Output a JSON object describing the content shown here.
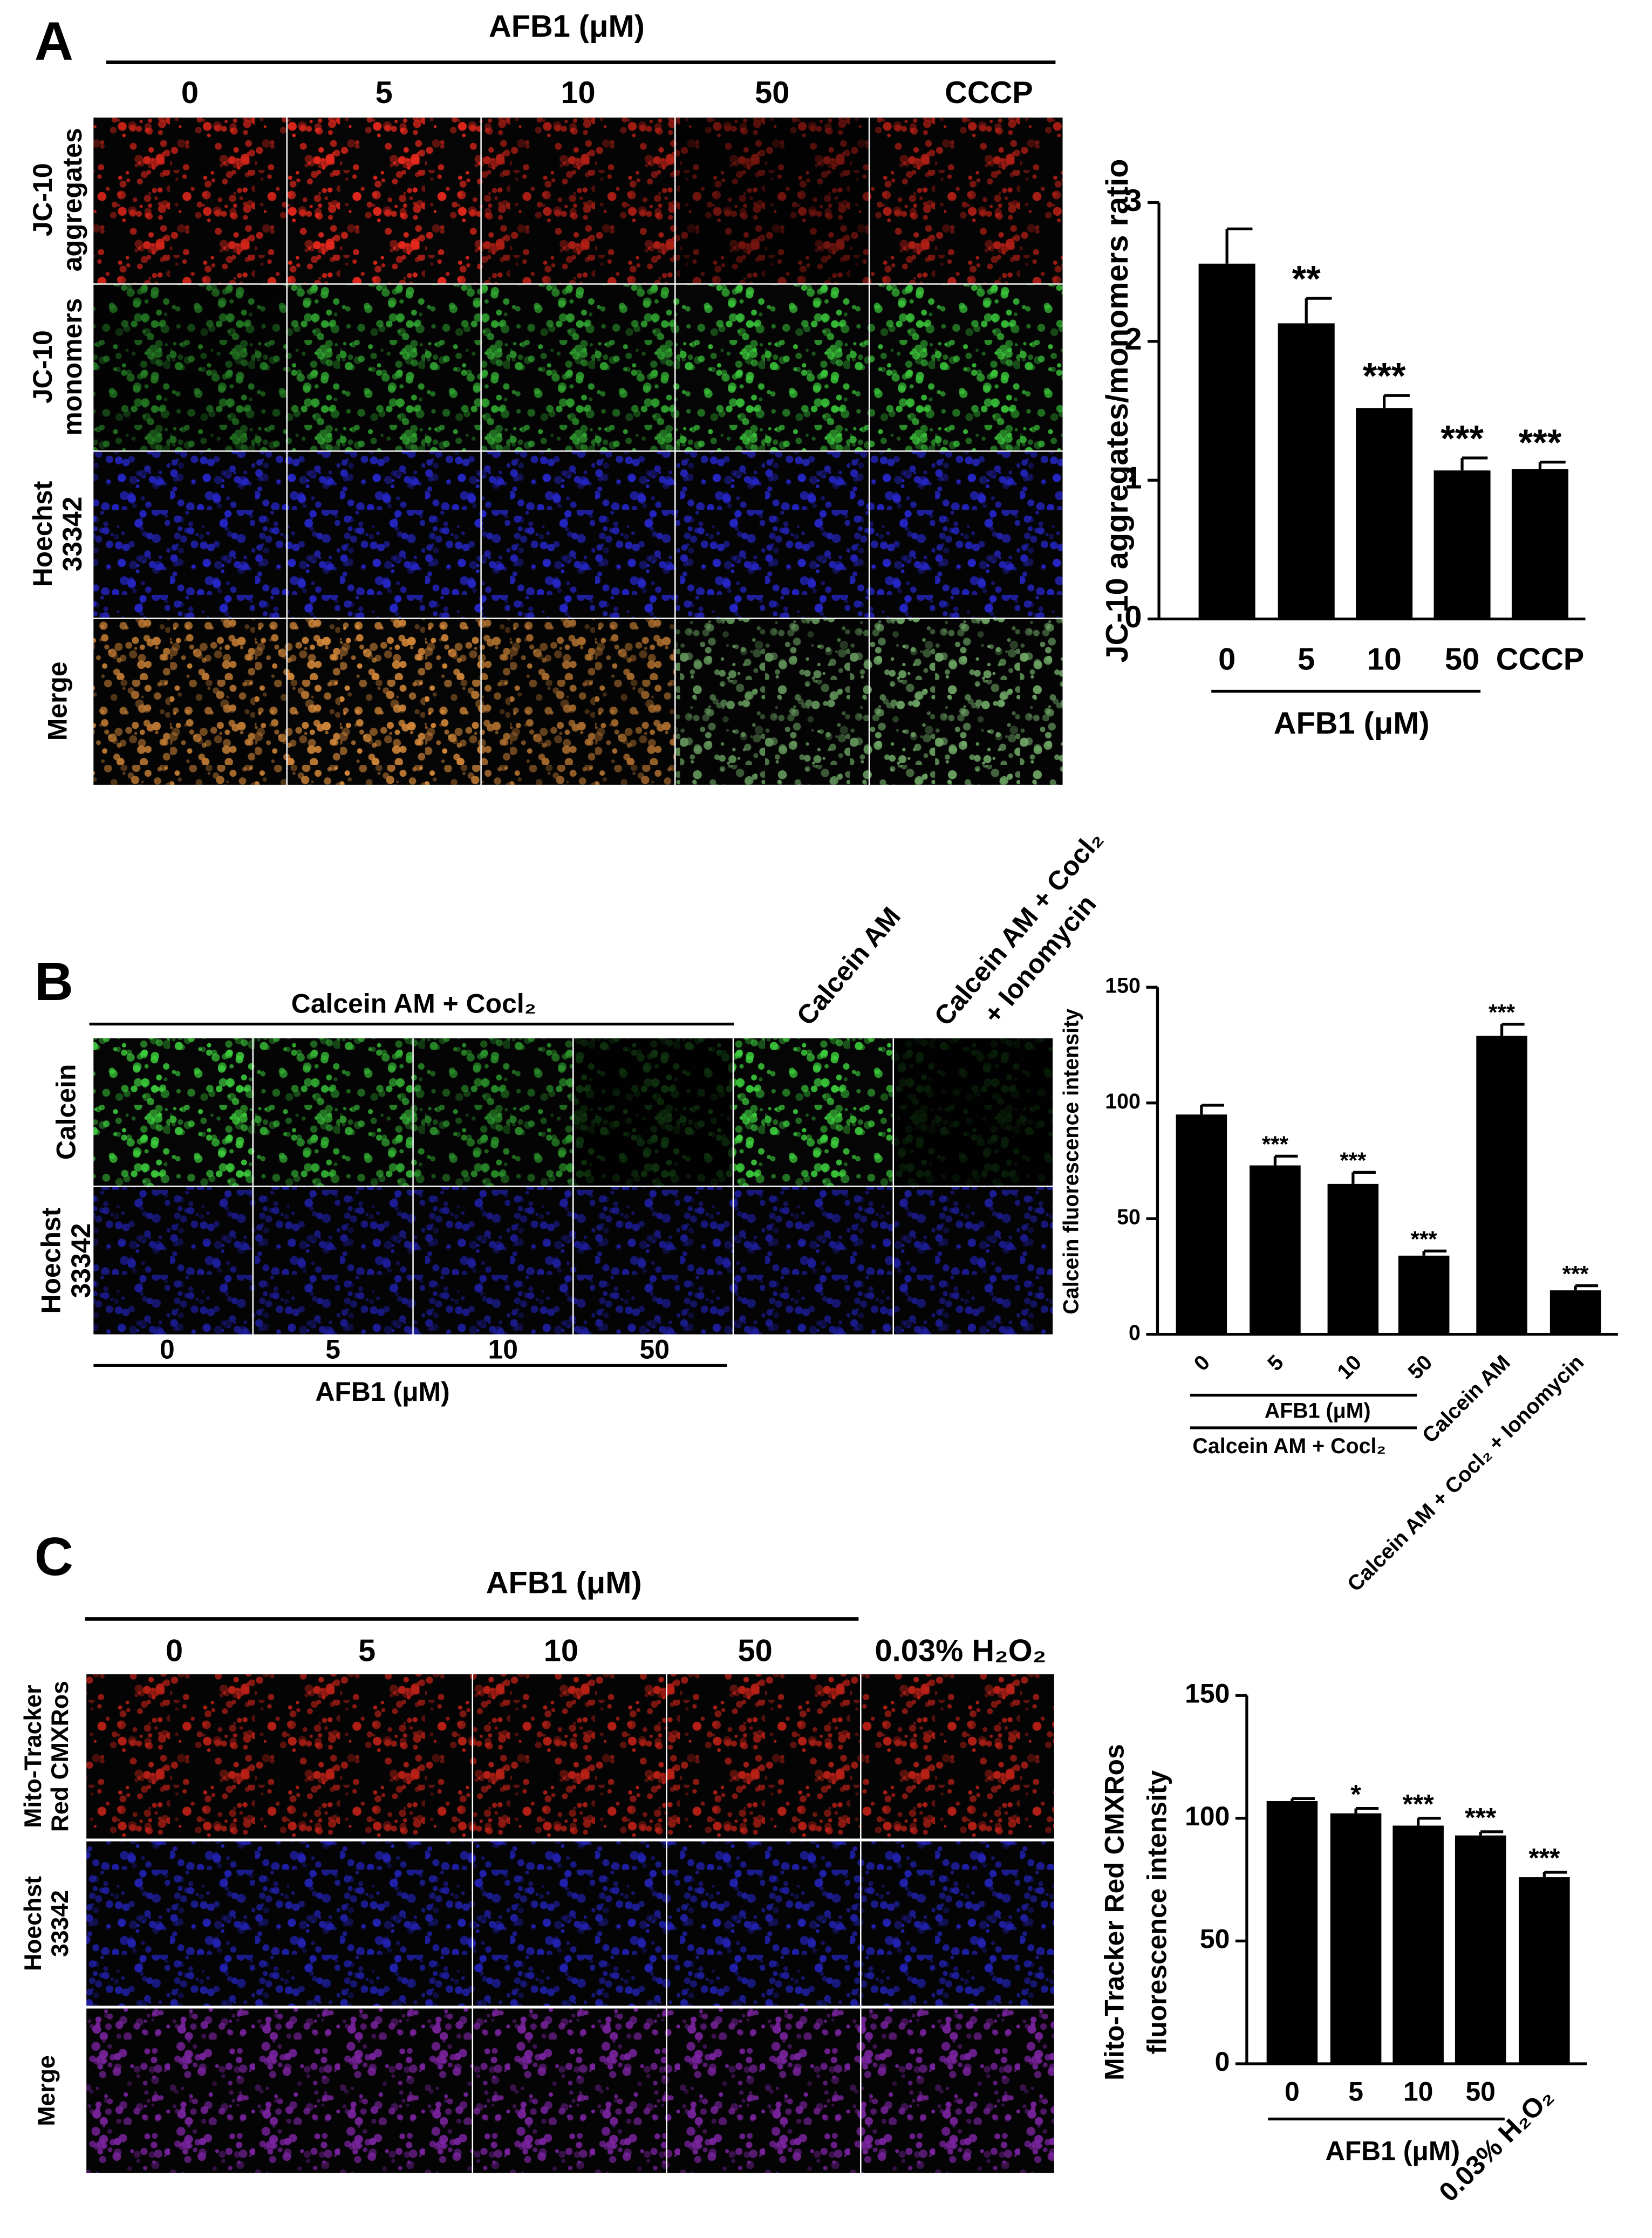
{
  "panels": {
    "A": {
      "label": "A",
      "header": "AFB1 (μM)",
      "columns": [
        "0",
        "5",
        "10",
        "50",
        "CCCP"
      ],
      "rows": [
        [
          "JC-10",
          "aggregates"
        ],
        [
          "JC-10",
          "monomers"
        ],
        [
          "Hoechst",
          "33342"
        ],
        [
          "Merge"
        ]
      ]
    },
    "B": {
      "label": "B",
      "header": "Calcein AM + Cocl₂",
      "extra_columns": [
        [
          "Calcein AM"
        ],
        [
          "Calcein AM + Cocl₂",
          "+ Ionomycin"
        ]
      ],
      "rows": [
        [
          "Calcein"
        ],
        [
          "Hoechst",
          "33342"
        ]
      ],
      "columns": [
        "0",
        "5",
        "10",
        "50"
      ],
      "footer": "AFB1 (μM)"
    },
    "C": {
      "label": "C",
      "header": "AFB1 (μM)",
      "columns": [
        "0",
        "5",
        "10",
        "50",
        "0.03% H₂O₂"
      ],
      "rows": [
        [
          "Mito-Tracker",
          "Red CMXRos"
        ],
        [
          "Hoechst",
          "33342"
        ],
        [
          "Merge"
        ]
      ]
    }
  },
  "chart_data": [
    {
      "type": "bar",
      "ylabel": [
        "JC-10 aggregates/monomers ratio"
      ],
      "group_label": "AFB1 (μM)",
      "categories": [
        "0",
        "5",
        "10",
        "50",
        "CCCP"
      ],
      "values": [
        2.56,
        2.13,
        1.52,
        1.07,
        1.08
      ],
      "errors": [
        0.25,
        0.18,
        0.09,
        0.09,
        0.05
      ],
      "significance": [
        null,
        "**",
        "***",
        "***",
        "***"
      ],
      "color": "#000000",
      "ylim": [
        0,
        3
      ],
      "yticks": [
        0,
        1,
        2,
        3
      ]
    },
    {
      "type": "bar",
      "ylabel": [
        "Calcein fluorescence intensity"
      ],
      "group_label": "AFB1 (μM)",
      "subgroup_label": "Calcein AM + Cocl₂",
      "categories": [
        "0",
        "5",
        "10",
        "50",
        "Calcein AM",
        "Calcein AM + Cocl₂ + Ionomycin"
      ],
      "values": [
        95,
        73,
        65,
        34,
        129,
        19
      ],
      "errors": [
        4,
        4,
        5,
        2,
        5,
        2
      ],
      "significance": [
        null,
        "***",
        "***",
        "***",
        "***",
        "***"
      ],
      "color": "#000000",
      "ylim": [
        0,
        150
      ],
      "yticks": [
        0,
        50,
        100,
        150
      ]
    },
    {
      "type": "bar",
      "ylabel": [
        "Mito-Tracker Red CMXRos",
        "fluorescence intensity"
      ],
      "group_label": "AFB1 (μM)",
      "categories": [
        "0",
        "5",
        "10",
        "50",
        "0.03% H₂O₂"
      ],
      "values": [
        107,
        102,
        97,
        93,
        76
      ],
      "errors": [
        1,
        2,
        3,
        1.5,
        2
      ],
      "significance": [
        null,
        "*",
        "***",
        "***",
        "***"
      ],
      "color": "#000000",
      "ylim": [
        0,
        150
      ],
      "yticks": [
        0,
        50,
        100,
        150
      ]
    }
  ]
}
